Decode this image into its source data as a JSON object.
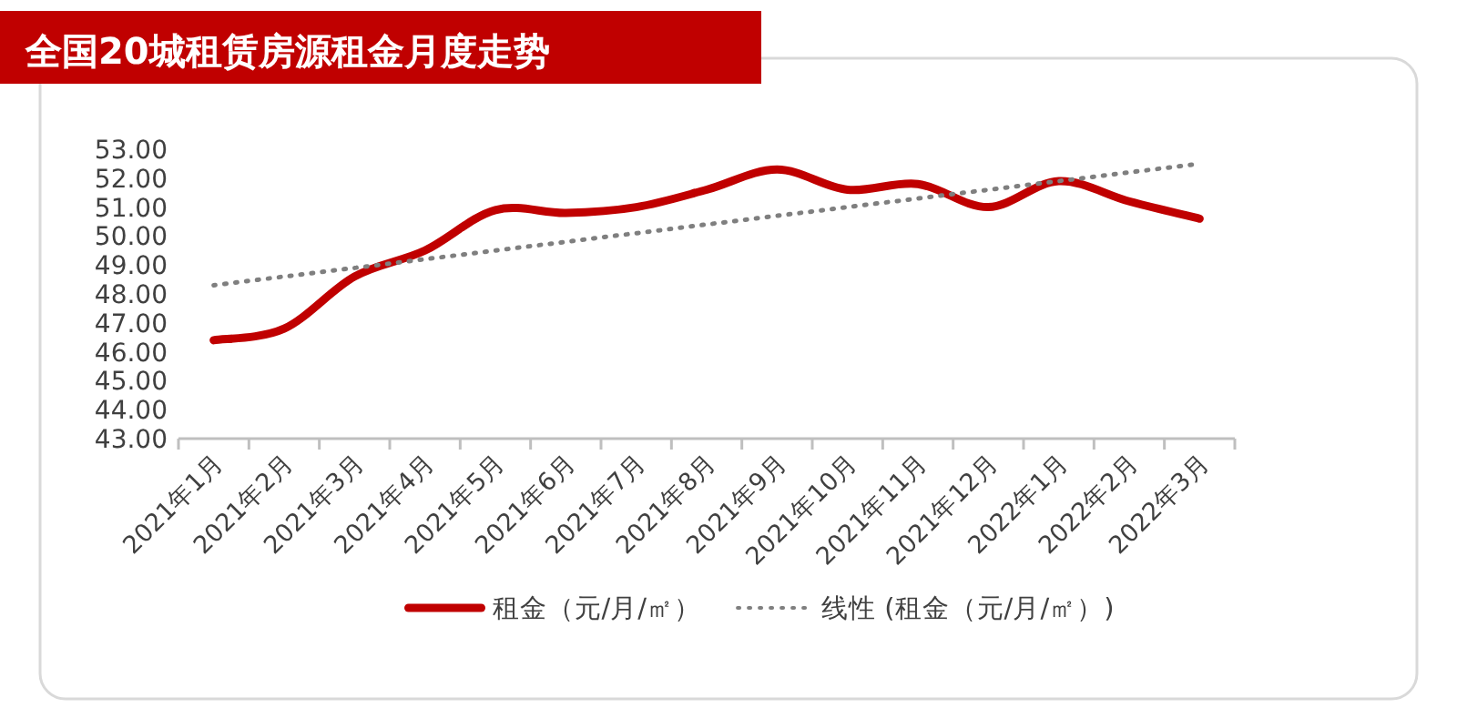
{
  "chart_data": {
    "type": "line",
    "title": "全国20城租赁房源租金月度走势",
    "categories": [
      "2021年1月",
      "2021年2月",
      "2021年3月",
      "2021年4月",
      "2021年5月",
      "2021年6月",
      "2021年7月",
      "2021年8月",
      "2021年9月",
      "2021年10月",
      "2021年11月",
      "2021年12月",
      "2022年1月",
      "2022年2月",
      "2022年3月"
    ],
    "series": [
      {
        "name": "租金（元/月/㎡）",
        "color": "#c00000",
        "line_style": "solid",
        "values": [
          46.4,
          46.8,
          48.6,
          49.5,
          50.9,
          50.8,
          51.0,
          51.6,
          52.3,
          51.6,
          51.8,
          51.0,
          51.9,
          51.2,
          50.6
        ]
      },
      {
        "name": "线性 (租金（元/月/㎡）)",
        "color": "#7f7f7f",
        "line_style": "dotted",
        "values": [
          48.3,
          48.6,
          48.9,
          49.2,
          49.5,
          49.8,
          50.1,
          50.4,
          50.7,
          51.0,
          51.3,
          51.6,
          51.9,
          52.2,
          52.5
        ]
      }
    ],
    "ylim": [
      43,
      53
    ],
    "yticks": [
      {
        "value": 43,
        "label": "43.00"
      },
      {
        "value": 44,
        "label": "44.00"
      },
      {
        "value": 45,
        "label": "45.00"
      },
      {
        "value": 46,
        "label": "46.00"
      },
      {
        "value": 47,
        "label": "47.00"
      },
      {
        "value": 48,
        "label": "48.00"
      },
      {
        "value": 49,
        "label": "49.00"
      },
      {
        "value": 50,
        "label": "50.00"
      },
      {
        "value": 51,
        "label": "51.00"
      },
      {
        "value": 52,
        "label": "52.00"
      },
      {
        "value": 53,
        "label": "53.00"
      }
    ],
    "grid": false,
    "legend": "bottom",
    "marker": "none"
  }
}
